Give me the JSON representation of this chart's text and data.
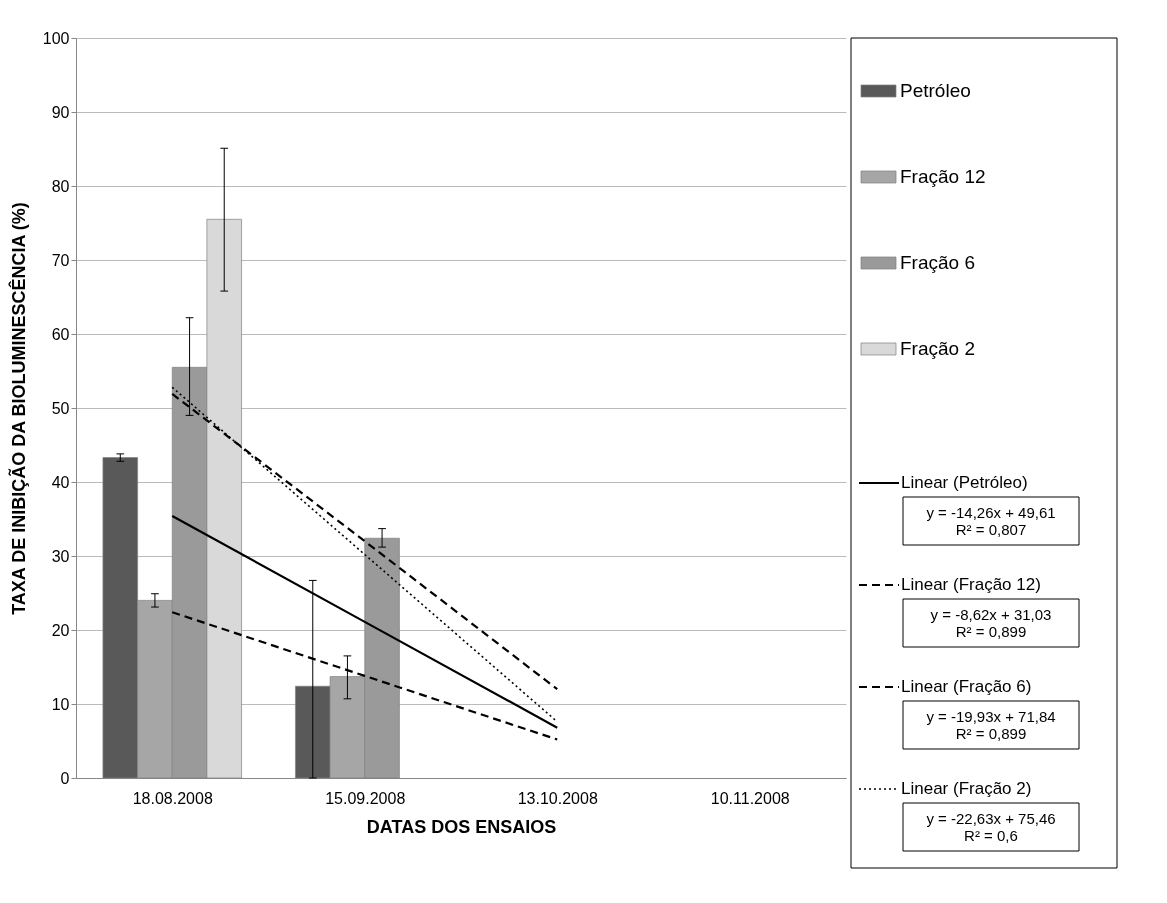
{
  "chart_data": {
    "type": "bar",
    "categories": [
      "18.08.2008",
      "15.09.2008",
      "13.10.2008",
      "10.11.2008"
    ],
    "xlabel": "DATAS DOS ENSAIOS",
    "ylabel": "TAXA DE INIBIÇÃO DA BIOLUMINESCÊNCIA (%)",
    "series": [
      {
        "name": "Petróleo",
        "color": "#595959",
        "values": [
          43.3,
          12.4,
          null,
          null
        ],
        "errors": [
          [
            42.8,
            43.8
          ],
          [
            0,
            26.7
          ],
          null,
          null
        ]
      },
      {
        "name": "Fração 12",
        "color": "#a6a6a6",
        "values": [
          24.0,
          13.7,
          null,
          null
        ],
        "errors": [
          [
            23.1,
            24.9
          ],
          [
            10.7,
            16.5
          ],
          null,
          null
        ]
      },
      {
        "name": "Fração 6",
        "color": "#9a9a9a",
        "values": [
          55.5,
          32.4,
          null,
          null
        ],
        "errors": [
          [
            49.0,
            62.2
          ],
          [
            31.2,
            33.7
          ],
          null,
          null
        ]
      },
      {
        "name": "Fração 2",
        "color": "#d9d9d9",
        "values": [
          75.5,
          null,
          null,
          null
        ],
        "errors": [
          [
            65.8,
            85.1
          ],
          null,
          null,
          null
        ]
      },
      {
        "name": "Linear (Petróleo)",
        "type": "line",
        "color": "#000000",
        "line_style": "solid",
        "values": [
          35.4,
          21.1,
          6.8,
          null
        ]
      },
      {
        "name": "Linear (Fração 12)",
        "type": "line",
        "color": "#000000",
        "line_style": "dashed",
        "values": [
          22.4,
          13.8,
          5.2,
          null
        ]
      },
      {
        "name": "Linear (Fração 6)",
        "type": "line",
        "color": "#000000",
        "line_style": "dashed",
        "values": [
          51.9,
          32.0,
          12.0,
          null
        ]
      },
      {
        "name": "Linear (Fração 2)",
        "type": "line",
        "color": "#000000",
        "line_style": "dotted",
        "values": [
          52.8,
          30.2,
          7.6,
          null
        ]
      }
    ],
    "annotations": [
      "y = -14,26x + 49,61\nR² = 0,807",
      "y = -8,62x + 31,03\nR² = 0,899",
      "y = -19,93x + 71,84\nR² = 0,899",
      "y = -22,63x + 75,46\nR² = 0,6"
    ],
    "ylim": [
      0,
      100
    ],
    "yticks": [
      0,
      10,
      20,
      30,
      40,
      50,
      60,
      70,
      80,
      90,
      100
    ],
    "grid": "y",
    "legend": "right"
  }
}
